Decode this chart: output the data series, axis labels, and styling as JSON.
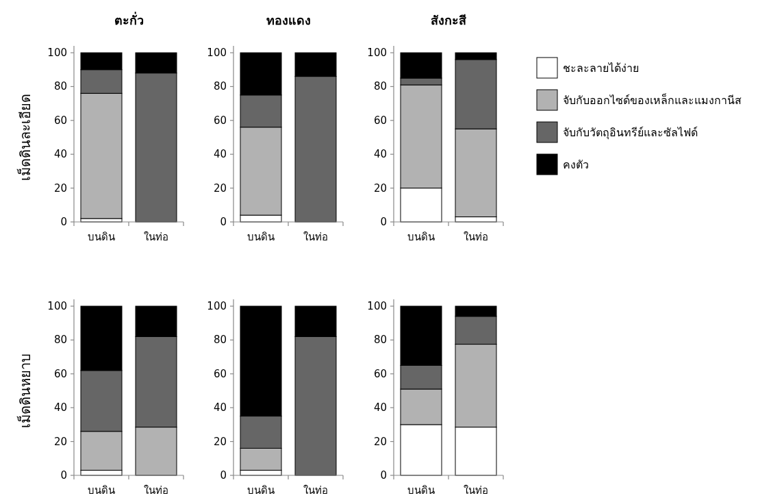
{
  "chart_data": [
    {
      "type": "bar",
      "title": "ตะกั่ว",
      "ylabel": "เม็ดดินละเอียด",
      "stacked": true,
      "legend": "right",
      "categories": [
        "บนดิน",
        "ในท่อ"
      ],
      "ylim": [
        0,
        100
      ],
      "yticks": [
        0,
        20,
        40,
        60,
        80,
        100
      ],
      "series": [
        {
          "name": "ชะละลายได้ง่าย",
          "color": "#ffffff",
          "values": [
            2,
            0
          ]
        },
        {
          "name": "จับกับออกไซด์ของเหล็กและแมงกานีส",
          "color": "#b2b2b2",
          "values": [
            74,
            0
          ]
        },
        {
          "name": "จับกับวัตถุอินทรีย์และซัลไฟด์",
          "color": "#666666",
          "values": [
            14,
            88
          ]
        },
        {
          "name": "คงตัว",
          "color": "#000000",
          "values": [
            10,
            12
          ]
        }
      ]
    },
    {
      "type": "bar",
      "title": "ทองแดง",
      "stacked": true,
      "categories": [
        "บนดิน",
        "ในท่อ"
      ],
      "ylim": [
        0,
        100
      ],
      "yticks": [
        0,
        20,
        40,
        60,
        80,
        100
      ],
      "series": [
        {
          "color": "#ffffff",
          "values": [
            4,
            0
          ]
        },
        {
          "color": "#b2b2b2",
          "values": [
            52,
            0
          ]
        },
        {
          "color": "#666666",
          "values": [
            19,
            86
          ]
        },
        {
          "color": "#000000",
          "values": [
            25,
            14
          ]
        }
      ]
    },
    {
      "type": "bar",
      "title": "สังกะสี",
      "stacked": true,
      "categories": [
        "บนดิน",
        "ในท่อ"
      ],
      "ylim": [
        0,
        100
      ],
      "yticks": [
        0,
        20,
        40,
        60,
        80,
        100
      ],
      "series": [
        {
          "color": "#ffffff",
          "values": [
            20,
            3
          ]
        },
        {
          "color": "#b2b2b2",
          "values": [
            61,
            52
          ]
        },
        {
          "color": "#666666",
          "values": [
            4,
            41
          ]
        },
        {
          "color": "#000000",
          "values": [
            15,
            4
          ]
        }
      ]
    },
    {
      "type": "bar",
      "ylabel": "เม็ดดินหยาบ",
      "stacked": true,
      "categories": [
        "บนดิน",
        "ในท่อ"
      ],
      "ylim": [
        0,
        100
      ],
      "yticks": [
        0,
        20,
        40,
        60,
        80,
        100
      ],
      "series": [
        {
          "color": "#ffffff",
          "values": [
            3,
            null
          ]
        },
        {
          "color": "#b2b2b2",
          "values": [
            23,
            28.5
          ]
        },
        {
          "color": "#666666",
          "values": [
            36,
            53.5
          ]
        },
        {
          "color": "#000000",
          "values": [
            38,
            18
          ]
        }
      ]
    },
    {
      "type": "bar",
      "stacked": true,
      "categories": [
        "บนดิน",
        "ในท่อ"
      ],
      "ylim": [
        0,
        100
      ],
      "yticks": [
        0,
        20,
        40,
        60,
        80,
        100
      ],
      "series": [
        {
          "color": "#ffffff",
          "values": [
            3,
            0
          ]
        },
        {
          "color": "#b2b2b2",
          "values": [
            13,
            0
          ]
        },
        {
          "color": "#666666",
          "values": [
            19,
            82
          ]
        },
        {
          "color": "#000000",
          "values": [
            65,
            18
          ]
        }
      ]
    },
    {
      "type": "bar",
      "stacked": true,
      "categories": [
        "บนดิน",
        "ในท่อ"
      ],
      "ylim": [
        0,
        100
      ],
      "yticks": [
        0,
        20,
        40,
        60,
        80,
        100
      ],
      "series": [
        {
          "color": "#ffffff",
          "values": [
            30,
            28.5
          ]
        },
        {
          "color": "#b2b2b2",
          "values": [
            21,
            49
          ]
        },
        {
          "color": "#666666",
          "values": [
            14,
            16.5
          ]
        },
        {
          "color": "#000000",
          "values": [
            35,
            6
          ]
        }
      ]
    }
  ]
}
